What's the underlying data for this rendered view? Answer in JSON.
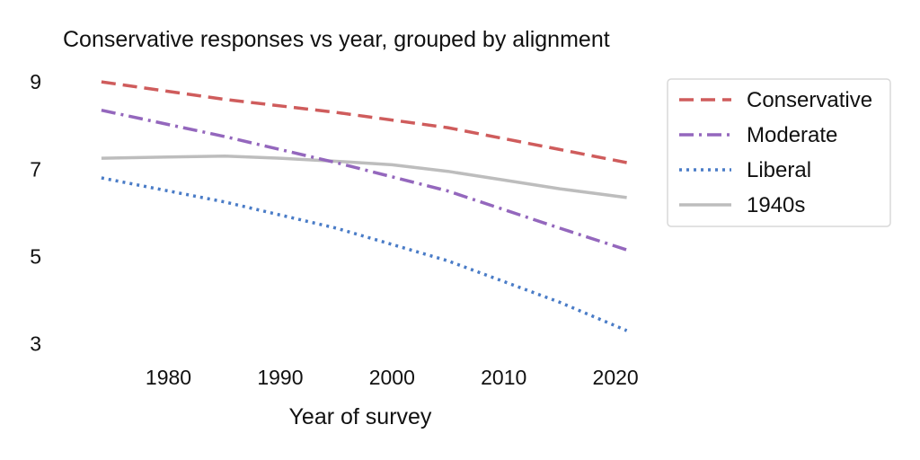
{
  "chart_data": {
    "type": "line",
    "title": "Conservative responses vs year, grouped by alignment",
    "xlabel": "Year of survey",
    "ylabel": "",
    "xlim": [
      1972,
      2022
    ],
    "ylim": [
      2.6,
      9.6
    ],
    "xticks": [
      1980,
      1990,
      2000,
      2010,
      2020
    ],
    "yticks": [
      3,
      5,
      7,
      9
    ],
    "grid": false,
    "legend_position": "top-right",
    "series": [
      {
        "name": "Conservative",
        "color": "#cf5c5c",
        "dash": "dashed",
        "x": [
          1974,
          1985,
          1995,
          2005,
          2015,
          2021
        ],
        "y": [
          9.0,
          8.6,
          8.3,
          7.95,
          7.45,
          7.15
        ]
      },
      {
        "name": "Moderate",
        "color": "#9467bd",
        "dash": "dashdot",
        "x": [
          1974,
          1985,
          1995,
          2005,
          2015,
          2021
        ],
        "y": [
          8.35,
          7.75,
          7.15,
          6.5,
          5.65,
          5.15
        ]
      },
      {
        "name": "Liberal",
        "color": "#4a7cc7",
        "dash": "dotted",
        "x": [
          1974,
          1985,
          1995,
          2005,
          2015,
          2021
        ],
        "y": [
          6.8,
          6.25,
          5.65,
          4.9,
          3.95,
          3.3
        ]
      },
      {
        "name": "1940s",
        "color": "#bdbdbd",
        "dash": "solid",
        "x": [
          1974,
          1980,
          1985,
          1990,
          1995,
          2000,
          2005,
          2010,
          2015,
          2021
        ],
        "y": [
          7.25,
          7.28,
          7.3,
          7.25,
          7.18,
          7.1,
          6.95,
          6.75,
          6.55,
          6.35
        ]
      }
    ]
  }
}
